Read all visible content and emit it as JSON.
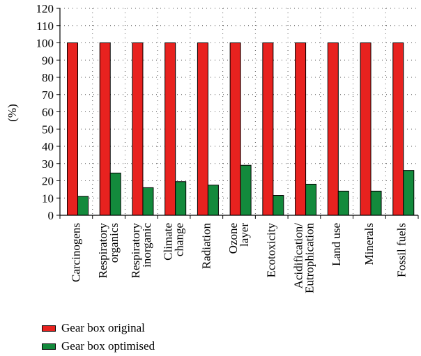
{
  "chart_data": {
    "type": "bar",
    "ylabel": "(%)",
    "xlabel": "",
    "ylim": [
      0,
      120
    ],
    "yticks": [
      0,
      10,
      20,
      30,
      40,
      50,
      60,
      70,
      80,
      90,
      100,
      110,
      120
    ],
    "grid": true,
    "legend_placement": "bottom-left",
    "categories": [
      [
        "Carcinogens"
      ],
      [
        "Respiratory",
        "organics"
      ],
      [
        "Respiratory",
        "inorganic"
      ],
      [
        "Climate",
        "change"
      ],
      [
        "Radiation"
      ],
      [
        "Ozone",
        "layer"
      ],
      [
        "Ecotoxicity"
      ],
      [
        "Acidification/",
        "Eutrophication"
      ],
      [
        "Land use"
      ],
      [
        "Minerals"
      ],
      [
        "Fossil fuels"
      ]
    ],
    "series": [
      {
        "name": "Gear box original",
        "color": "#e8221f",
        "values": [
          100,
          100,
          100,
          100,
          100,
          100,
          100,
          100,
          100,
          100,
          100
        ]
      },
      {
        "name": "Gear box optimised",
        "color": "#138a3c",
        "values": [
          11,
          24.5,
          16,
          19.5,
          17.5,
          29,
          11.5,
          18,
          14,
          14,
          26
        ]
      }
    ]
  }
}
